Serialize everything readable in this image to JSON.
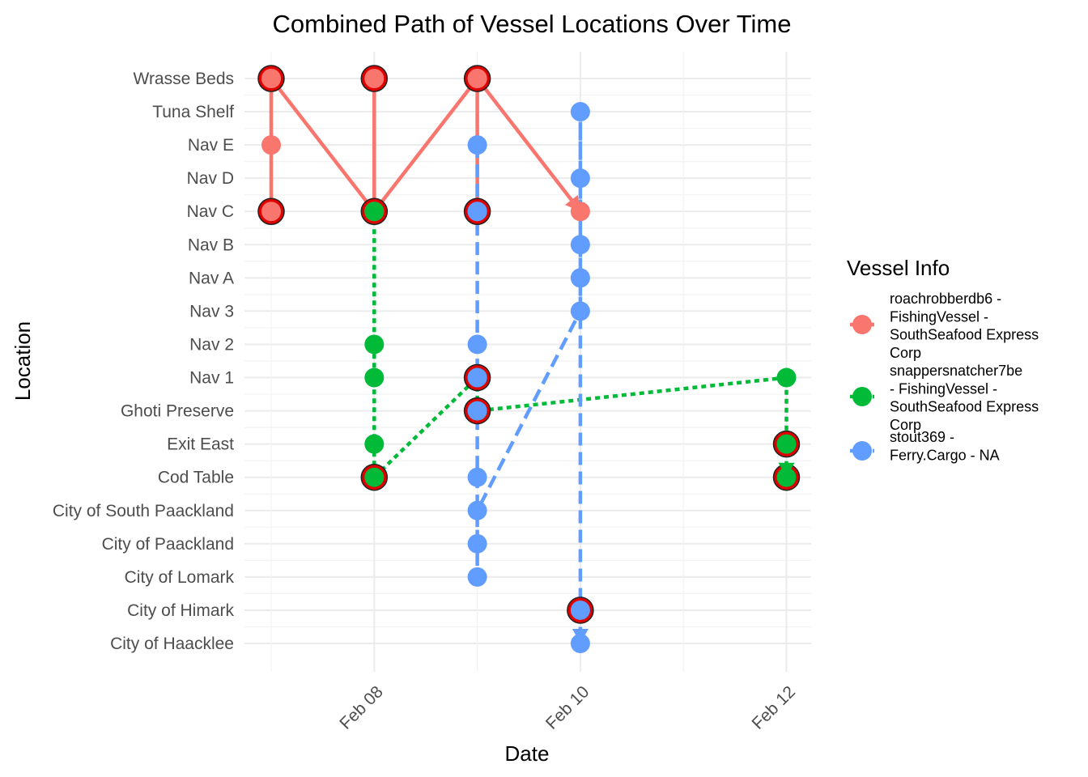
{
  "chart_data": {
    "type": "line",
    "title": "Combined Path of Vessel Locations Over Time",
    "xlabel": "Date",
    "ylabel": "Location",
    "x_ticks": [
      "Feb 08",
      "Feb 10",
      "Feb 12"
    ],
    "xlim": [
      "2035-02-07",
      "2035-02-12"
    ],
    "locations": [
      "City of Haacklee",
      "City of Himark",
      "City of Lomark",
      "City of Paackland",
      "City of South Paackland",
      "Cod Table",
      "Exit East",
      "Ghoti Preserve",
      "Nav 1",
      "Nav 2",
      "Nav 3",
      "Nav A",
      "Nav B",
      "Nav C",
      "Nav D",
      "Nav E",
      "Tuna Shelf",
      "Wrasse Beds"
    ],
    "legend": {
      "title": "Vessel Info",
      "position": "right"
    },
    "grid": true,
    "series": [
      {
        "name": "roachrobberdb6 - FishingVessel - SouthSeafood Express Corp",
        "legend_lines": [
          "roachrobberdb6 -",
          "FishingVessel -",
          "SouthSeafood Express",
          "Corp"
        ],
        "color": "#F8766D",
        "line_style": "solid",
        "points": [
          {
            "x": "2035-02-07",
            "y": "Wrasse Beds"
          },
          {
            "x": "2035-02-07",
            "y": "Nav E"
          },
          {
            "x": "2035-02-07",
            "y": "Nav C"
          },
          {
            "x": "2035-02-07",
            "y": "Wrasse Beds"
          },
          {
            "x": "2035-02-08",
            "y": "Nav C"
          },
          {
            "x": "2035-02-08",
            "y": "Wrasse Beds"
          },
          {
            "x": "2035-02-08",
            "y": "Nav C"
          },
          {
            "x": "2035-02-09",
            "y": "Wrasse Beds"
          },
          {
            "x": "2035-02-09",
            "y": "Nav C"
          },
          {
            "x": "2035-02-09",
            "y": "Wrasse Beds"
          },
          {
            "x": "2035-02-10",
            "y": "Nav C"
          }
        ]
      },
      {
        "name": "snappersnatcher7be - FishingVessel - SouthSeafood Express Corp",
        "legend_lines": [
          "snappersnatcher7be",
          "- FishingVessel -",
          "SouthSeafood Express",
          "Corp"
        ],
        "color": "#00BA38",
        "line_style": "dotted",
        "points": [
          {
            "x": "2035-02-08",
            "y": "Nav C"
          },
          {
            "x": "2035-02-08",
            "y": "Nav 2"
          },
          {
            "x": "2035-02-08",
            "y": "Nav 1"
          },
          {
            "x": "2035-02-08",
            "y": "Exit East"
          },
          {
            "x": "2035-02-08",
            "y": "Cod Table"
          },
          {
            "x": "2035-02-09",
            "y": "Nav 1"
          },
          {
            "x": "2035-02-09",
            "y": "Ghoti Preserve"
          },
          {
            "x": "2035-02-12",
            "y": "Nav 1"
          },
          {
            "x": "2035-02-12",
            "y": "Exit East"
          },
          {
            "x": "2035-02-12",
            "y": "Cod Table"
          }
        ]
      },
      {
        "name": "stout369 - Ferry.Cargo - NA",
        "legend_lines": [
          "stout369 -",
          "Ferry.Cargo - NA"
        ],
        "color": "#619CFF",
        "line_style": "dashed",
        "points": [
          {
            "x": "2035-02-09",
            "y": "Nav E"
          },
          {
            "x": "2035-02-09",
            "y": "Nav C"
          },
          {
            "x": "2035-02-09",
            "y": "Nav 2"
          },
          {
            "x": "2035-02-09",
            "y": "Nav 1"
          },
          {
            "x": "2035-02-09",
            "y": "Ghoti Preserve"
          },
          {
            "x": "2035-02-09",
            "y": "Cod Table"
          },
          {
            "x": "2035-02-09",
            "y": "City of Paackland"
          },
          {
            "x": "2035-02-09",
            "y": "City of Lomark"
          },
          {
            "x": "2035-02-09",
            "y": "City of South Paackland"
          },
          {
            "x": "2035-02-10",
            "y": "Nav 3"
          },
          {
            "x": "2035-02-10",
            "y": "Nav A"
          },
          {
            "x": "2035-02-10",
            "y": "Nav B"
          },
          {
            "x": "2035-02-10",
            "y": "Nav D"
          },
          {
            "x": "2035-02-10",
            "y": "Tuna Shelf"
          },
          {
            "x": "2035-02-10",
            "y": "City of Himark"
          },
          {
            "x": "2035-02-10",
            "y": "City of Haacklee"
          }
        ]
      }
    ],
    "highlights": [
      {
        "x": "2035-02-07",
        "y": "Wrasse Beds"
      },
      {
        "x": "2035-02-07",
        "y": "Nav C"
      },
      {
        "x": "2035-02-08",
        "y": "Wrasse Beds"
      },
      {
        "x": "2035-02-08",
        "y": "Nav C"
      },
      {
        "x": "2035-02-08",
        "y": "Cod Table"
      },
      {
        "x": "2035-02-09",
        "y": "Wrasse Beds"
      },
      {
        "x": "2035-02-09",
        "y": "Nav C"
      },
      {
        "x": "2035-02-09",
        "y": "Nav 1"
      },
      {
        "x": "2035-02-09",
        "y": "Ghoti Preserve"
      },
      {
        "x": "2035-02-10",
        "y": "City of Himark"
      },
      {
        "x": "2035-02-12",
        "y": "Exit East"
      },
      {
        "x": "2035-02-12",
        "y": "Cod Table"
      }
    ],
    "highlight_color": "#E00000"
  }
}
